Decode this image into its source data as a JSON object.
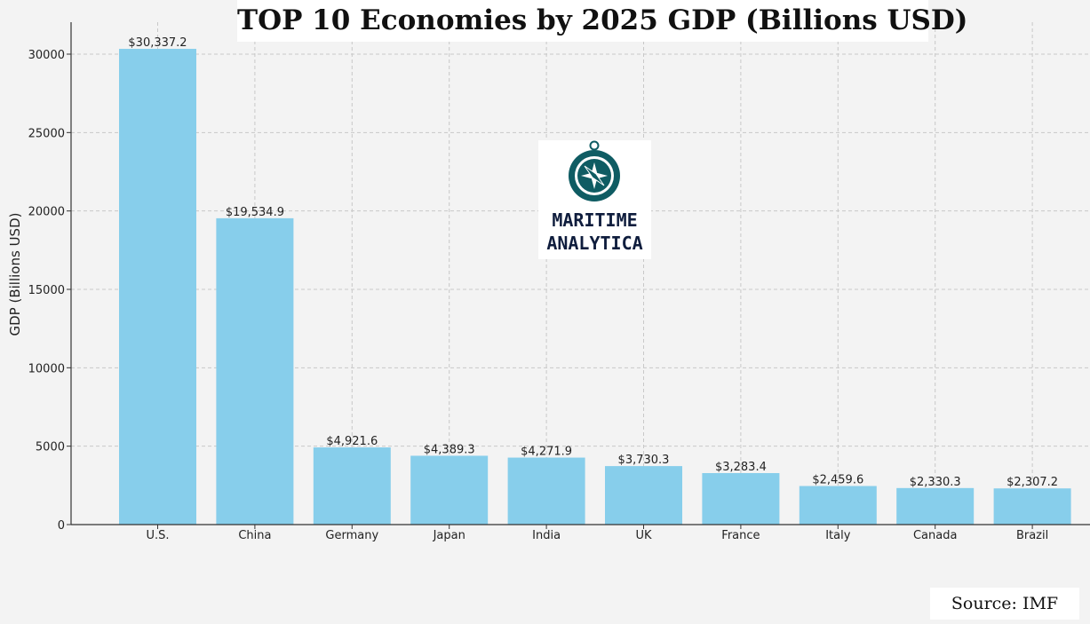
{
  "title": "TOP 10 Economies by 2025 GDP (Billions USD)",
  "source": "Source: IMF",
  "logo": {
    "line1": "MARITIME",
    "line2": "ANALYTICA",
    "icon": "compass-icon"
  },
  "colors": {
    "bar": "#87ceeb",
    "background": "#f3f3f3",
    "grid": "#c8c8c8",
    "logo_text": "#0f1d3d",
    "logo_icon": "#0f5c63"
  },
  "chart_data": {
    "type": "bar",
    "title": "TOP 10 Economies by 2025 GDP (Billions USD)",
    "xlabel": "",
    "ylabel": "GDP (Billions USD)",
    "categories": [
      "U.S.",
      "China",
      "Germany",
      "Japan",
      "India",
      "UK",
      "France",
      "Italy",
      "Canada",
      "Brazil"
    ],
    "values": [
      30337.2,
      19534.9,
      4921.6,
      4389.3,
      4271.9,
      3730.3,
      3283.4,
      2459.6,
      2330.3,
      2307.2
    ],
    "value_labels": [
      "$30,337.2",
      "$19,534.9",
      "$4,921.6",
      "$4,389.3",
      "$4,271.9",
      "$3,730.3",
      "$3,283.4",
      "$2,459.6",
      "$2,330.3",
      "$2,307.2"
    ],
    "ylim": [
      0,
      32000
    ],
    "yticks": [
      0,
      5000,
      10000,
      15000,
      20000,
      25000,
      30000
    ],
    "ytick_labels": [
      "0",
      "5000",
      "10000",
      "15000",
      "20000",
      "25000",
      "30000"
    ],
    "grid": true,
    "grid_style": "dashed"
  }
}
